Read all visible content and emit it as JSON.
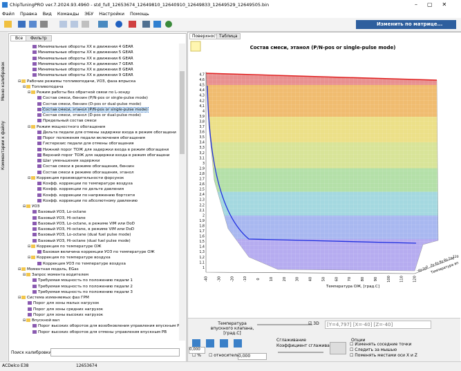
{
  "window": {
    "title": "ChipTuningPRO ver.7.2024.93.4960 - std_full_12653674_12649810_12640910_12649833_12649529_12649505.bin"
  },
  "menu": [
    "Файл",
    "Правка",
    "Вид",
    "Команды",
    "ЭБУ",
    "Настройки",
    "Помощь"
  ],
  "toolbar": {
    "matrix_button": "Изменить по матрице..."
  },
  "side_tabs": [
    "Меню калибровок",
    "Комментарии к файлу"
  ],
  "left_tabs": [
    "Все",
    "Фильтр"
  ],
  "tree": [
    {
      "children": [
        {
          "label": "Минимальные обороты XX в движении 4 GEAR"
        },
        {
          "label": "Минимальные обороты XX в движении 5 GEAR"
        },
        {
          "label": "Минимальные обороты XX в движении 6 GEAR"
        },
        {
          "label": "Минимальные обороты XX в движении 7 GEAR"
        },
        {
          "label": "Минимальные обороты XX в движении 8 GEAR"
        },
        {
          "label": "Минимальные обороты XX в движении 9 GEAR"
        }
      ]
    },
    {
      "label": "Рабочие режимы топливоподачи, УОЗ, фаза впрыска",
      "children": [
        {
          "label": "Топливоподача",
          "children": [
            {
              "label": "Режим работы без обратной связи по L-зонду",
              "children": [
                {
                  "label": "Состав смеси, бензин (P/N-pos or single-pulse mode)"
                },
                {
                  "label": "Состав смеси, бензин (D-pos or dual-pulse mode)"
                },
                {
                  "label": "Состав смеси, этанол (P/N-pos or single-pulse mode)",
                  "selected": true
                },
                {
                  "label": "Состав смеси, этанол (D-pos or dual-pulse mode)"
                },
                {
                  "label": "Предельный состав смеси"
                }
              ]
            },
            {
              "label": "Режим мощностного обогащения",
              "children": [
                {
                  "label": "Дельта педали для отмены задержки входа в режим обогащени"
                },
                {
                  "label": "Порог положения педали включения обогащения"
                },
                {
                  "label": "Гистерезис педали для отмены обогащения"
                },
                {
                  "label": "Нижний порог ТОЖ для задержки входа в режим обогащени"
                },
                {
                  "label": "Верхний порог ТОЖ для задержки входа в режим обогащени"
                },
                {
                  "label": "Шаг уменьшения задержки"
                },
                {
                  "label": "Состав смеси в режиме обогащения, бензин"
                },
                {
                  "label": "Состав смеси в режиме обогащения, этанол"
                }
              ]
            },
            {
              "label": "Коррекция производительности форсунок",
              "children": [
                {
                  "label": "Коэфф. коррекции по температуре воздуха"
                },
                {
                  "label": "Коэфф. коррекции по дельте давления"
                },
                {
                  "label": "Коэфф. коррекции по напряжению бортсети"
                },
                {
                  "label": "Коэфф. коррекции по абсолютному давлению"
                }
              ]
            }
          ]
        },
        {
          "label": "УОЗ",
          "children": [
            {
              "label": "Базовый УОЗ, Lo-octane"
            },
            {
              "label": "Базовый УОЗ, Hi-octane"
            },
            {
              "label": "Базовый УОЗ, Lo-octane, в режиме VIM или DoD"
            },
            {
              "label": "Базовый УОЗ, Hi-octane, в режиме VIM или DoD"
            },
            {
              "label": "Базовый УОЗ, Lo-octane (dual fuel pulse mode)"
            },
            {
              "label": "Базовый УОЗ, Hi-octane (dual fuel pulse mode)"
            },
            {
              "label": "Коррекция по температуре ОЖ",
              "children": [
                {
                  "label": "Базовая величина коррекции УОЗ по температуре ОЖ"
                }
              ]
            },
            {
              "label": "Коррекция по температуре воздуха",
              "children": [
                {
                  "label": "Коррекция УОЗ по температуре воздуха"
                }
              ]
            }
          ]
        }
      ]
    },
    {
      "label": "Моментная модель, EGas",
      "children": [
        {
          "label": "Запрос момента водителем",
          "children": [
            {
              "label": "Требуемая мощность по положению педали 1"
            },
            {
              "label": "Требуемая мощность по положению педали 2"
            },
            {
              "label": "Требуемая мощность по положению педали 3"
            }
          ]
        }
      ]
    },
    {
      "label": "Система изменяемых фаз ГРМ",
      "children": [
        {
          "label": "Порог для зоны малых нагрузок"
        },
        {
          "label": "Порог для зоны средних нагрузок"
        },
        {
          "label": "Порог для зоны высоких нагрузок"
        },
        {
          "label": "Впускной вал",
          "children": [
            {
              "label": "Порог высоких оборотов для возобновления управления впускным Р"
            },
            {
              "label": "Порог высоких оборотов для отмены управления впускным РВ"
            }
          ]
        }
      ]
    }
  ],
  "search_label": "Поиск калибровки",
  "right_tabs": [
    "Поверхность",
    "Таблица"
  ],
  "surface": {
    "title": "Состав смеси, этанол (P/N-pos or single-pulse mode)",
    "z_labels": [
      "4,7",
      "4,6",
      "4,5",
      "4,4",
      "4,3",
      "4,2",
      "4,1",
      "4",
      "3,9",
      "3,8",
      "3,7",
      "3,6",
      "3,5",
      "3,4",
      "3,3",
      "3,2",
      "3,1",
      "3",
      "2,9",
      "2,8",
      "2,7",
      "2,6",
      "2,5",
      "2,4",
      "2,3",
      "2,2",
      "2,1",
      "2",
      "1,9",
      "1,8",
      "1,7",
      "1,6",
      "1,5",
      "1,4",
      "1,3",
      "1,2",
      "1,1",
      "1"
    ],
    "x_labels": [
      "-40",
      "-30",
      "-20",
      "-10",
      "0",
      "10",
      "20",
      "30",
      "40",
      "50",
      "60",
      "70",
      "80",
      "90",
      "100",
      "110",
      "120"
    ],
    "x_title": "Температура ОЖ, [град.С]",
    "z_axis_labels": [
      "-40",
      "-20",
      "0",
      "20",
      "40",
      "60",
      "80",
      "100",
      "120"
    ],
    "z_title": "Температура вп"
  },
  "controls": {
    "slider_label": "Температура впускного клапана, [град.С]",
    "check_3d": "3D",
    "readout": "[Y=4,797] [X=-40] [Z=-40]",
    "smoothing": "Сглаживание",
    "smoothing_coef": "Коэффициент сглаживания",
    "percent": "%",
    "relative": "относительно",
    "value1": "0,000",
    "value2": "0,000",
    "options": "Опции",
    "option_items": [
      "Изменять соседние точки",
      "Следить за мышью",
      "Поменять местами оси X и Z"
    ]
  },
  "status": [
    "ACDelco E38",
    "12653674"
  ]
}
